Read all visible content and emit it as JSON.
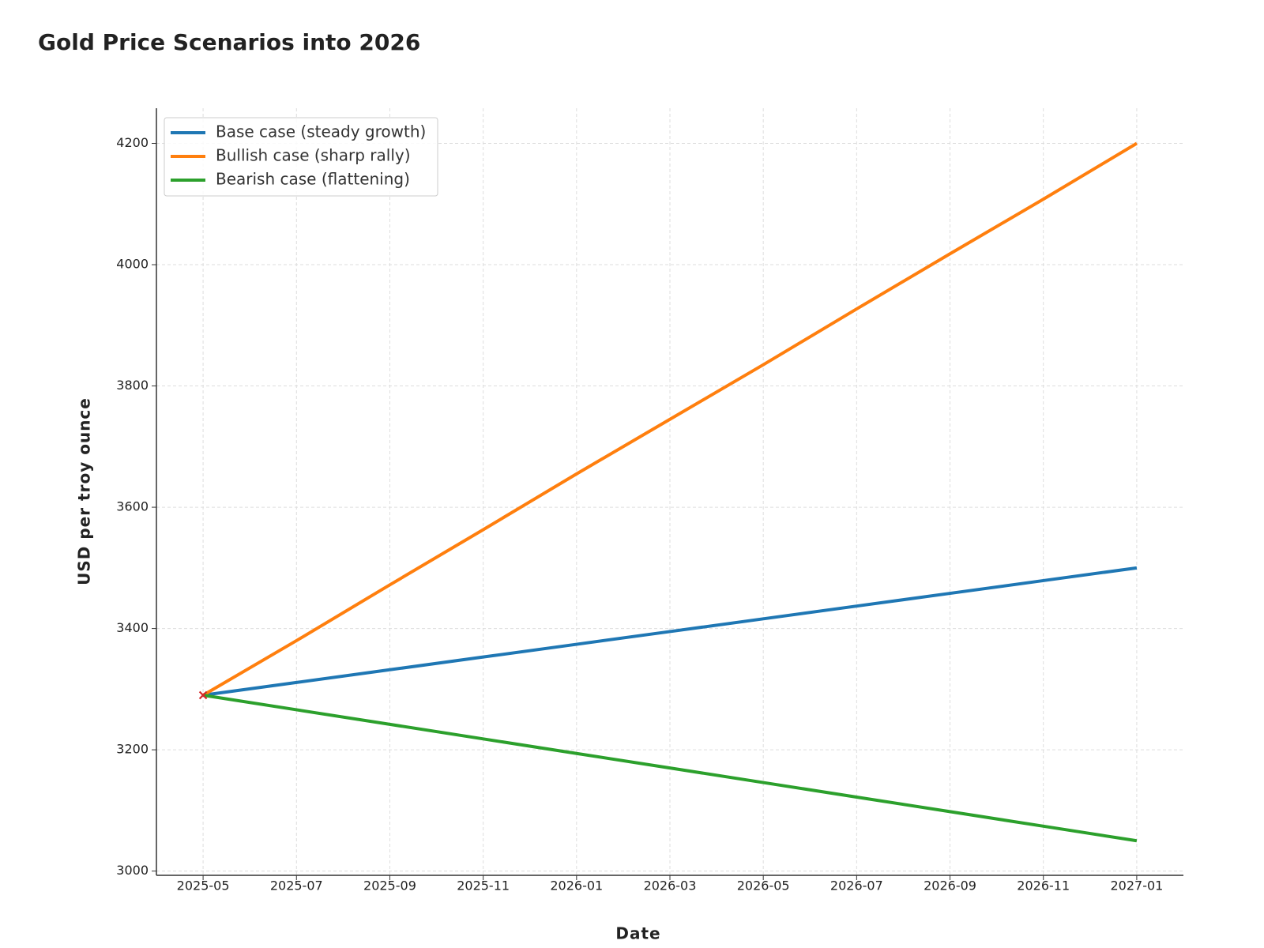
{
  "chart_data": {
    "type": "line",
    "title": "Gold Price Scenarios into 2026",
    "x_label": "Date",
    "y_label": "USD per troy ounce",
    "x": [
      "2025-05",
      "2025-07",
      "2025-09",
      "2025-11",
      "2026-01",
      "2026-03",
      "2026-05",
      "2026-07",
      "2026-09",
      "2026-11",
      "2027-01"
    ],
    "series": [
      {
        "name": "Base case (steady growth)",
        "color": "#1f77b4",
        "values": [
          3290,
          3311,
          3332,
          3353,
          3374,
          3395,
          3416,
          3437,
          3458,
          3479,
          3500
        ]
      },
      {
        "name": "Bullish case (sharp rally)",
        "color": "#ff7f0e",
        "values": [
          3290,
          3380,
          3472,
          3563,
          3655,
          3745,
          3835,
          3927,
          4018,
          4108,
          4200
        ]
      },
      {
        "name": "Bearish case (flattening)",
        "color": "#2ca02c",
        "values": [
          3290,
          3266,
          3242,
          3218,
          3194,
          3170,
          3146,
          3122,
          3098,
          3074,
          3050
        ]
      }
    ],
    "start_marker": {
      "x": "2025-05",
      "value": 3290,
      "color": "#d62728"
    },
    "xlim": [
      "2025-04",
      "2027-02"
    ],
    "xticks": [
      "2025-05",
      "2025-07",
      "2025-09",
      "2025-11",
      "2026-01",
      "2026-03",
      "2026-05",
      "2026-07",
      "2026-09",
      "2026-11",
      "2027-01"
    ],
    "ylim": [
      2993,
      4258
    ],
    "yticks": [
      3000,
      3200,
      3400,
      3600,
      3800,
      4000,
      4200
    ],
    "grid": true,
    "legend_position": "upper-left"
  }
}
